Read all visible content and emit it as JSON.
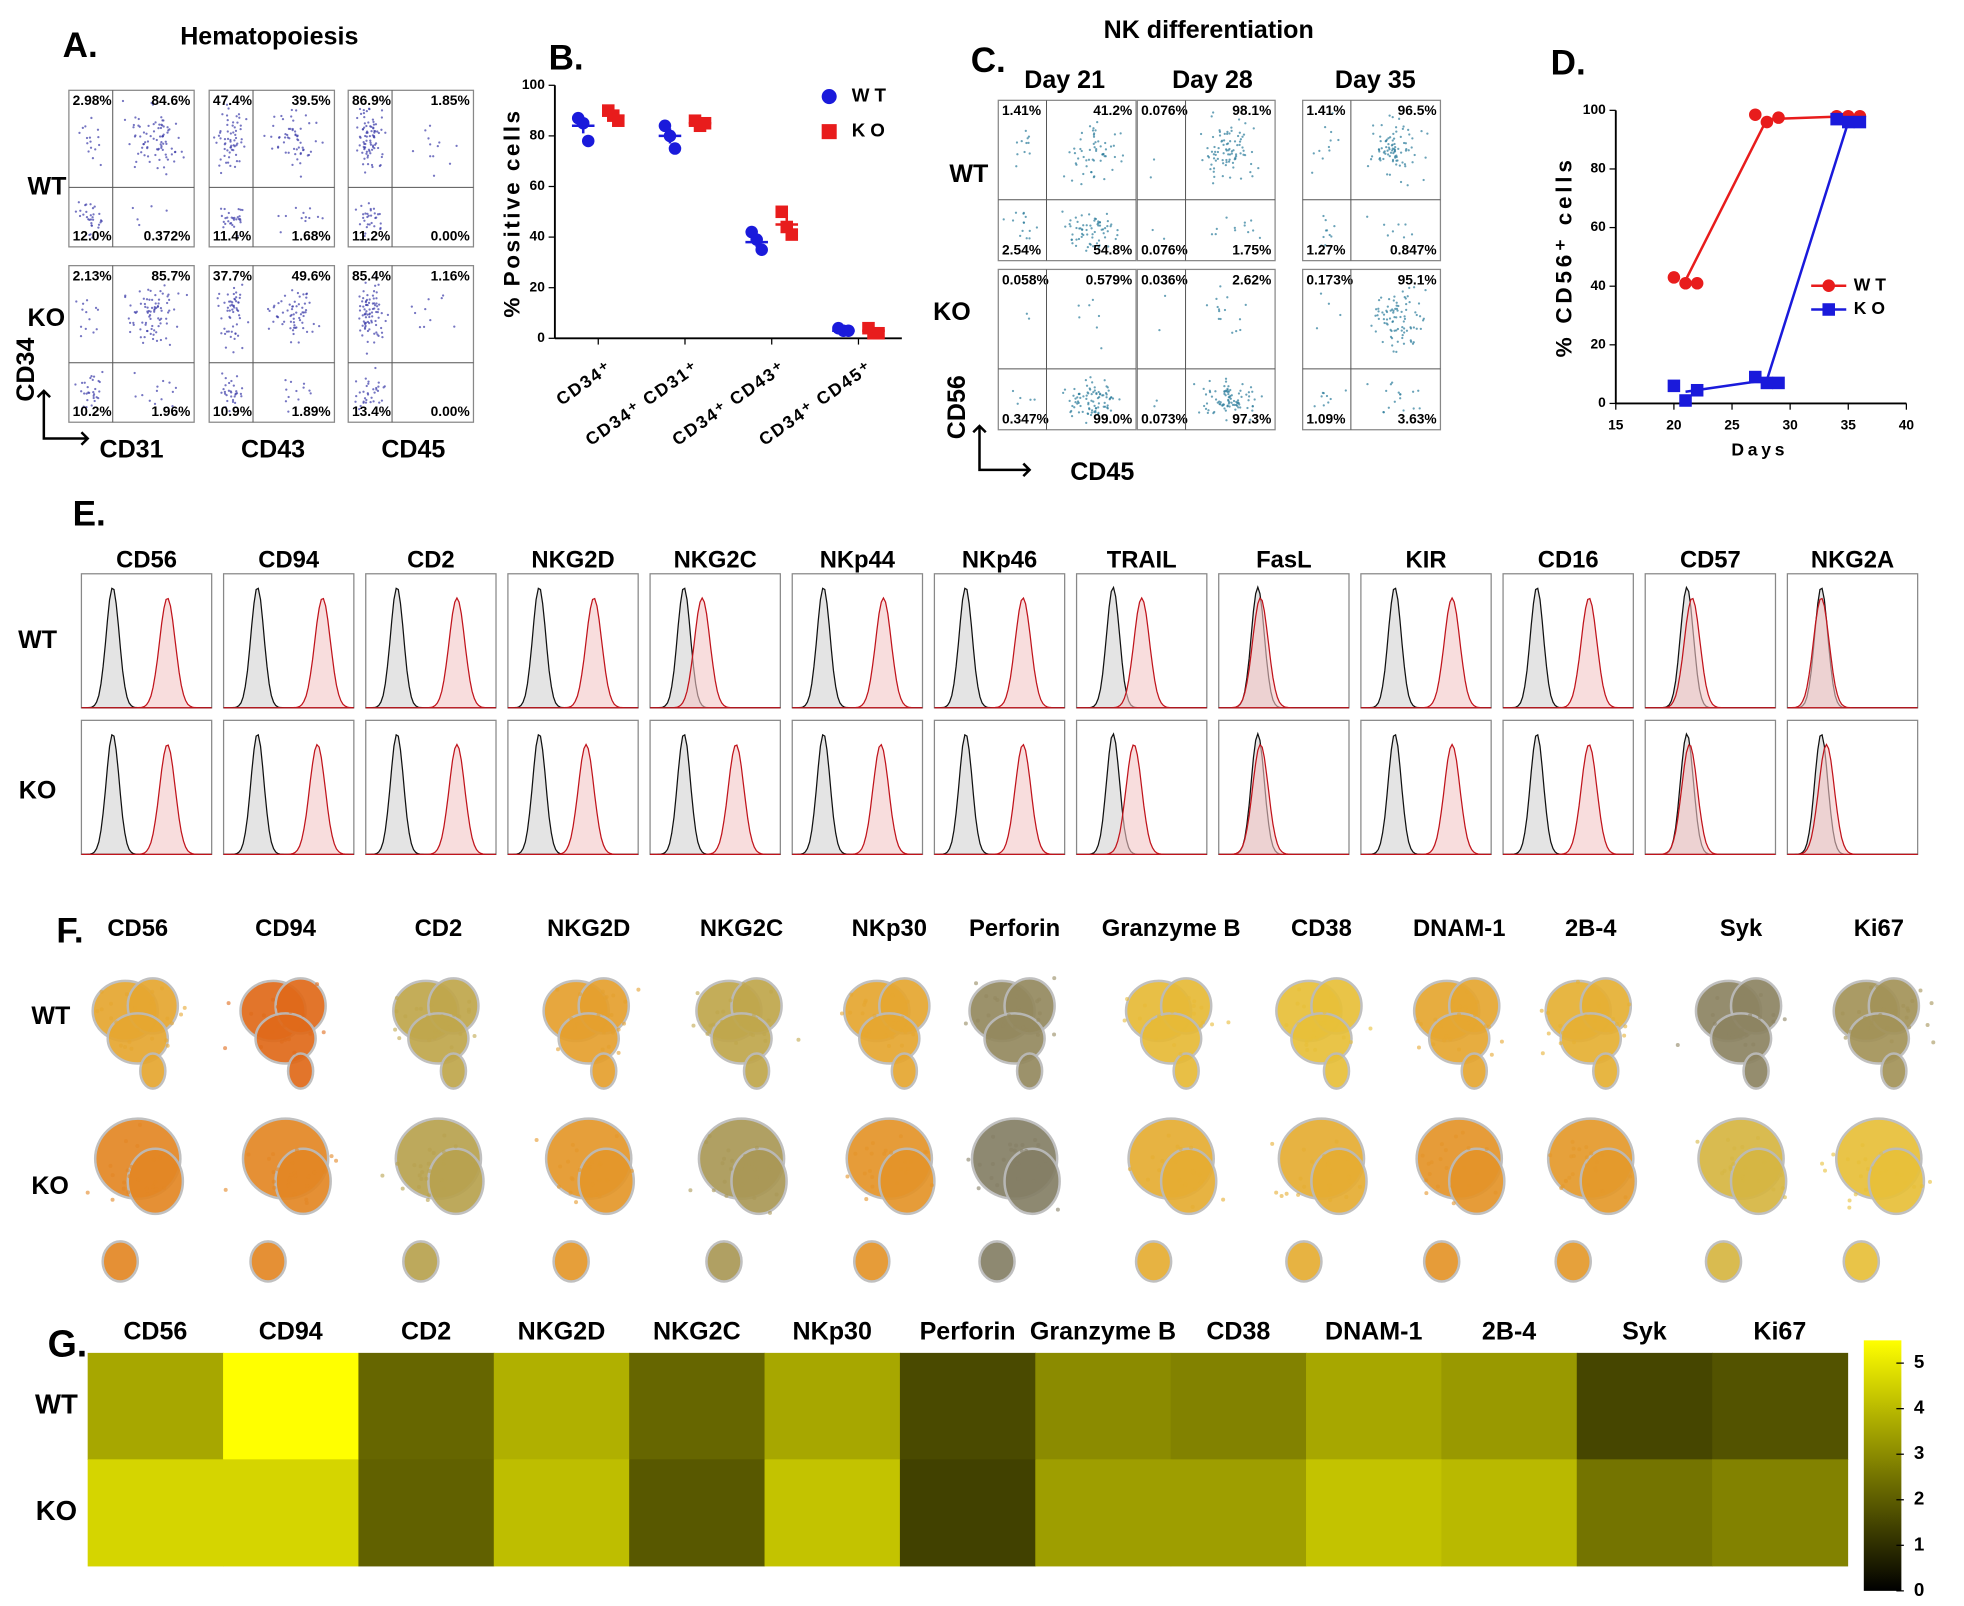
{
  "panel_a": {
    "label": "A.",
    "title": "Hematopoiesis",
    "rows": [
      "WT",
      "KO"
    ],
    "columns": [
      "CD31",
      "CD43",
      "CD45"
    ],
    "y_axis": "CD34",
    "quadrants": [
      [
        [
          "2.98%",
          "84.6%",
          "12.0%",
          "0.372%"
        ],
        [
          "47.4%",
          "39.5%",
          "11.4%",
          "1.68%"
        ],
        [
          "86.9%",
          "1.85%",
          "11.2%",
          "0.00%"
        ]
      ],
      [
        [
          "2.13%",
          "85.7%",
          "10.2%",
          "1.96%"
        ],
        [
          "37.7%",
          "49.6%",
          "10.9%",
          "1.89%"
        ],
        [
          "85.4%",
          "1.16%",
          "13.4%",
          "0.00%"
        ]
      ]
    ]
  },
  "panel_c": {
    "label": "C.",
    "title": "NK differentiation",
    "columns": [
      "Day 21",
      "Day 28",
      "Day 35"
    ],
    "rows": [
      "WT",
      "KO"
    ],
    "y_axis": "CD56",
    "x_axis": "CD45",
    "quadrants": [
      [
        [
          "1.41%",
          "41.2%",
          "2.54%",
          "54.8%"
        ],
        [
          "0.076%",
          "98.1%",
          "0.076%",
          "1.75%"
        ],
        [
          "1.41%",
          "96.5%",
          "1.27%",
          "0.847%"
        ]
      ],
      [
        [
          "0.058%",
          "0.579%",
          "0.347%",
          "99.0%"
        ],
        [
          "0.036%",
          "2.62%",
          "0.073%",
          "97.3%"
        ],
        [
          "0.173%",
          "95.1%",
          "1.09%",
          "3.63%"
        ]
      ]
    ]
  },
  "chart_data": [
    {
      "type": "dot",
      "label": "B.",
      "ylabel": "% Positive cells",
      "categories": [
        "CD34⁺",
        "CD34⁺ CD31⁺",
        "CD34⁺ CD43⁺",
        "CD34⁺ CD45⁺"
      ],
      "ylim": [
        0,
        100
      ],
      "yticks": [
        0,
        20,
        40,
        60,
        80,
        100
      ],
      "legend": "upper right",
      "series": [
        {
          "name": "WT",
          "color": "#1a1adb",
          "marker": "circle",
          "values": [
            84,
            80,
            38,
            3
          ],
          "errors": [
            3,
            3,
            2,
            0.5
          ],
          "points": [
            [
              87,
              85,
              78
            ],
            [
              84,
              80,
              75
            ],
            [
              42,
              39,
              35
            ],
            [
              4,
              3,
              3
            ]
          ]
        },
        {
          "name": "KO",
          "color": "#e81c1c",
          "marker": "square",
          "values": [
            88,
            85,
            45,
            3
          ],
          "errors": [
            1,
            1,
            3,
            0.6
          ],
          "points": [
            [
              90,
              88,
              86
            ],
            [
              86,
              84,
              85
            ],
            [
              50,
              44,
              41
            ],
            [
              4,
              2,
              2
            ]
          ]
        }
      ]
    },
    {
      "type": "line",
      "label": "D.",
      "ylabel": "% CD56⁺ cells",
      "xlabel": "Days",
      "xlim": [
        15,
        40
      ],
      "xticks": [
        15,
        20,
        25,
        30,
        35,
        40
      ],
      "ylim": [
        0,
        100
      ],
      "yticks": [
        0,
        20,
        40,
        60,
        80,
        100
      ],
      "legend": "right",
      "series": [
        {
          "name": "WT",
          "color": "#e81c1c",
          "marker": "circle",
          "x": [
            20,
            21,
            22,
            27,
            28,
            29,
            34,
            35,
            36
          ],
          "values": [
            43,
            41,
            41,
            98.5,
            96,
            97.5,
            98,
            98,
            98
          ],
          "line_x": [
            21,
            28,
            35
          ],
          "line_values": [
            42,
            97,
            98
          ]
        },
        {
          "name": "KO",
          "color": "#1a1adb",
          "marker": "square",
          "x": [
            20,
            21,
            22,
            27,
            28,
            29,
            34,
            35,
            36
          ],
          "values": [
            6,
            1,
            4.5,
            9,
            7,
            7,
            97,
            96,
            96
          ],
          "line_x": [
            21,
            28,
            35
          ],
          "line_values": [
            4,
            8,
            96
          ]
        }
      ]
    },
    {
      "type": "heatmap",
      "label": "G.",
      "categories": [
        "CD56",
        "CD94",
        "CD2",
        "NKG2D",
        "NKG2C",
        "NKp30",
        "Perforin",
        "Granzyme B",
        "CD38",
        "DNAM-1",
        "2B-4",
        "Syk",
        "Ki67"
      ],
      "rows": [
        "WT",
        "KO"
      ],
      "values": [
        [
          3.6,
          5.5,
          2.2,
          3.8,
          2.2,
          3.6,
          1.6,
          3.0,
          2.8,
          3.6,
          3.3,
          1.5,
          1.8
        ],
        [
          4.6,
          4.6,
          2.1,
          4.1,
          1.9,
          4.2,
          1.4,
          3.4,
          3.4,
          4.2,
          4.0,
          2.5,
          2.8
        ]
      ],
      "zlim": [
        0,
        5.5
      ],
      "zticks": [
        0,
        1,
        2,
        3,
        4,
        5
      ],
      "colormap": [
        "#000000",
        "#ffff00"
      ]
    }
  ],
  "panel_e": {
    "label": "E.",
    "rows": [
      "WT",
      "KO"
    ],
    "markers": [
      "CD56",
      "CD94",
      "CD2",
      "NKG2D",
      "NKG2C",
      "NKp44",
      "NKp46",
      "TRAIL",
      "FasL",
      "KIR",
      "CD16",
      "CD57",
      "NKG2A"
    ],
    "axis_range": [
      1,
      6
    ],
    "control_peak": [
      2.2,
      2.3,
      2.2,
      2.2,
      2.3,
      2.2,
      2.2,
      2.4,
      2.5,
      2.3,
      2.3,
      2.6,
      2.3
    ],
    "wt_peak": [
      4.3,
      4.8,
      4.5,
      4.3,
      3.0,
      4.5,
      4.4,
      3.5,
      2.6,
      4.5,
      4.3,
      2.8,
      2.3
    ],
    "ko_peak": [
      4.3,
      4.6,
      4.5,
      4.0,
      4.3,
      4.4,
      4.4,
      3.2,
      2.6,
      4.5,
      4.3,
      2.7,
      2.5
    ]
  },
  "panel_f": {
    "label": "F.",
    "rows": [
      "WT",
      "KO"
    ],
    "markers": [
      "CD56",
      "CD94",
      "CD2",
      "NKG2D",
      "NKG2C",
      "NKp30",
      "Perforin",
      "Granzyme B",
      "CD38",
      "DNAM-1",
      "2B-4",
      "Syk",
      "Ki67"
    ],
    "colormap": [
      "#1f3a93",
      "#e8c23a",
      "#e06a1a"
    ]
  }
}
